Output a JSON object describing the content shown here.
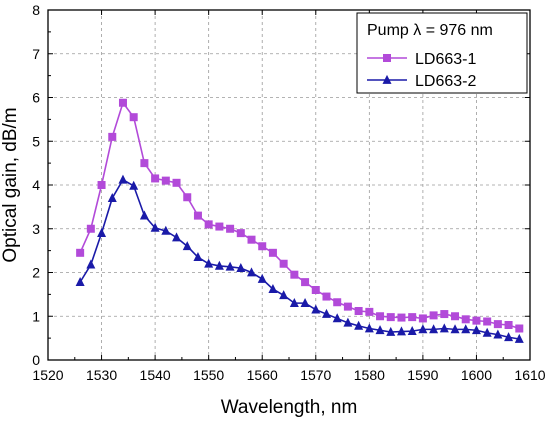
{
  "chart_data": {
    "type": "line",
    "xlabel": "Wavelength, nm",
    "ylabel": "Optical gain, dB/m",
    "xlim": [
      1520,
      1610
    ],
    "ylim": [
      0,
      8
    ],
    "xticks": [
      "1520",
      "1530",
      "1540",
      "1550",
      "1560",
      "1570",
      "1580",
      "1590",
      "1600",
      "1610"
    ],
    "yticks": [
      "0",
      "1",
      "2",
      "3",
      "4",
      "5",
      "6",
      "7",
      "8"
    ],
    "grid": true,
    "legend": {
      "placement": "top-right",
      "title": "Pump λ = 976 nm"
    },
    "series": [
      {
        "name": "LD663-1",
        "marker": "square",
        "color": "#b24ad9",
        "x": [
          1526,
          1528,
          1530,
          1532,
          1534,
          1536,
          1538,
          1540,
          1542,
          1544,
          1546,
          1548,
          1550,
          1552,
          1554,
          1556,
          1558,
          1560,
          1562,
          1564,
          1566,
          1568,
          1570,
          1572,
          1574,
          1576,
          1578,
          1580,
          1582,
          1584,
          1586,
          1588,
          1590,
          1592,
          1594,
          1596,
          1598,
          1600,
          1602,
          1604,
          1606,
          1608
        ],
        "y": [
          2.45,
          3.0,
          4.0,
          5.1,
          5.88,
          5.55,
          4.5,
          4.15,
          4.1,
          4.05,
          3.72,
          3.3,
          3.1,
          3.05,
          3.0,
          2.9,
          2.75,
          2.6,
          2.45,
          2.2,
          1.95,
          1.78,
          1.6,
          1.45,
          1.32,
          1.22,
          1.12,
          1.1,
          1.0,
          0.98,
          0.97,
          0.98,
          0.95,
          1.02,
          1.05,
          1.0,
          0.93,
          0.9,
          0.88,
          0.82,
          0.8,
          0.72
        ]
      },
      {
        "name": "LD663-2",
        "marker": "triangle",
        "color": "#1a1aa8",
        "x": [
          1526,
          1528,
          1530,
          1532,
          1534,
          1536,
          1538,
          1540,
          1542,
          1544,
          1546,
          1548,
          1550,
          1552,
          1554,
          1556,
          1558,
          1560,
          1562,
          1564,
          1566,
          1568,
          1570,
          1572,
          1574,
          1576,
          1578,
          1580,
          1582,
          1584,
          1586,
          1588,
          1590,
          1592,
          1594,
          1596,
          1598,
          1600,
          1602,
          1604,
          1606,
          1608
        ],
        "y": [
          1.78,
          2.18,
          2.9,
          3.7,
          4.12,
          3.98,
          3.3,
          3.02,
          2.95,
          2.8,
          2.6,
          2.35,
          2.2,
          2.15,
          2.13,
          2.1,
          2.0,
          1.85,
          1.62,
          1.48,
          1.3,
          1.3,
          1.15,
          1.05,
          0.95,
          0.85,
          0.78,
          0.72,
          0.68,
          0.64,
          0.65,
          0.66,
          0.7,
          0.7,
          0.72,
          0.7,
          0.7,
          0.68,
          0.62,
          0.58,
          0.52,
          0.48
        ]
      }
    ]
  }
}
